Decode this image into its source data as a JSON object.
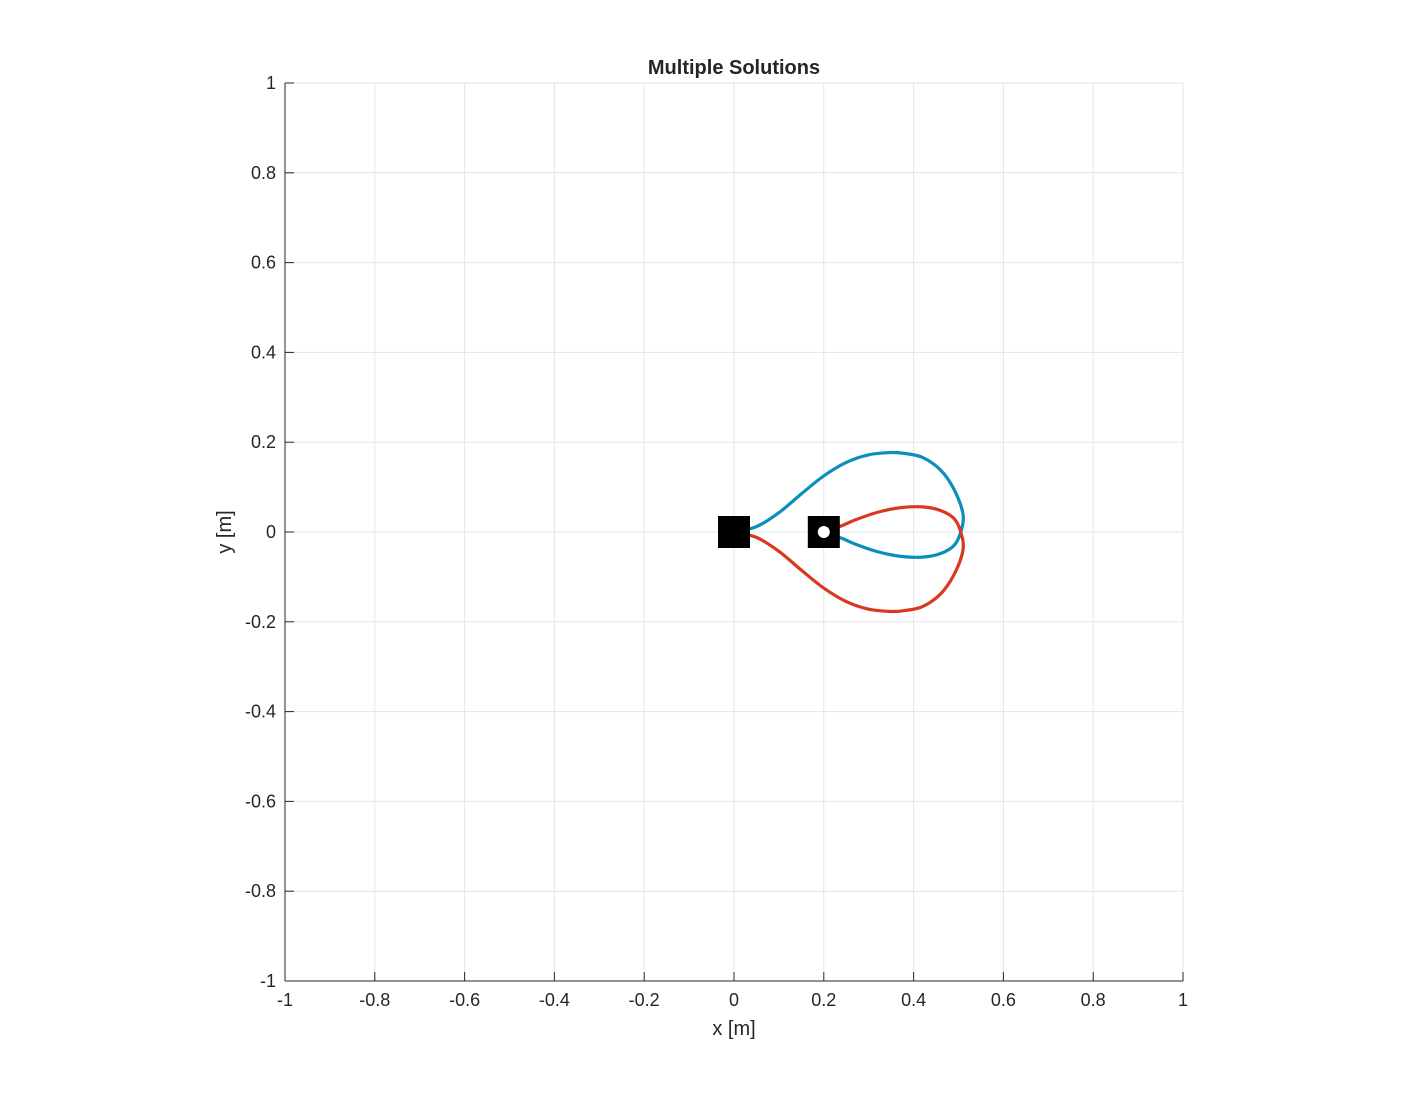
{
  "chart_data": {
    "type": "line",
    "title": "Multiple Solutions",
    "xlabel": "x [m]",
    "ylabel": "y [m]",
    "xlim": [
      -1,
      1
    ],
    "ylim": [
      -1,
      1
    ],
    "grid": true,
    "xticks": [
      -1,
      -0.8,
      -0.6,
      -0.4,
      -0.2,
      0,
      0.2,
      0.4,
      0.6,
      0.8,
      1
    ],
    "yticks": [
      -1,
      -0.8,
      -0.6,
      -0.4,
      -0.2,
      0,
      0.2,
      0.4,
      0.6,
      0.8,
      1
    ],
    "xtick_labels": [
      "-1",
      "-0.8",
      "-0.6",
      "-0.4",
      "-0.2",
      "0",
      "0.2",
      "0.4",
      "0.6",
      "0.8",
      "1"
    ],
    "ytick_labels": [
      "-1",
      "-0.8",
      "-0.6",
      "-0.4",
      "-0.2",
      "0",
      "0.2",
      "0.4",
      "0.6",
      "0.8",
      "1"
    ],
    "series": [
      {
        "color": "#0a8fba",
        "x": [
          0.0,
          0.05,
          0.1,
          0.15,
          0.2,
          0.25,
          0.3,
          0.35,
          0.38,
          0.42,
          0.46,
          0.49,
          0.51,
          0.505,
          0.49,
          0.46,
          0.42,
          0.37,
          0.32,
          0.27,
          0.24,
          0.2
        ],
        "y": [
          0.0,
          0.012,
          0.043,
          0.085,
          0.125,
          0.155,
          0.172,
          0.177,
          0.175,
          0.166,
          0.138,
          0.095,
          0.04,
          0.0,
          -0.03,
          -0.048,
          -0.056,
          -0.054,
          -0.044,
          -0.027,
          -0.014,
          0.0
        ]
      },
      {
        "color": "#d8391e",
        "x": [
          0.0,
          0.05,
          0.1,
          0.15,
          0.2,
          0.25,
          0.3,
          0.35,
          0.38,
          0.42,
          0.46,
          0.49,
          0.51,
          0.505,
          0.49,
          0.46,
          0.42,
          0.37,
          0.32,
          0.27,
          0.24,
          0.2
        ],
        "y": [
          0.0,
          -0.012,
          -0.043,
          -0.085,
          -0.125,
          -0.155,
          -0.172,
          -0.177,
          -0.175,
          -0.166,
          -0.138,
          -0.095,
          -0.04,
          0.0,
          0.03,
          0.048,
          0.056,
          0.054,
          0.044,
          0.027,
          0.014,
          0.0
        ]
      }
    ],
    "markers": [
      {
        "shape": "square",
        "fill": "#000000",
        "x": 0.0,
        "y": 0.0
      },
      {
        "shape": "square-with-circle",
        "fill": "#000000",
        "inner_fill": "#ffffff",
        "x": 0.2,
        "y": 0.0
      }
    ]
  }
}
